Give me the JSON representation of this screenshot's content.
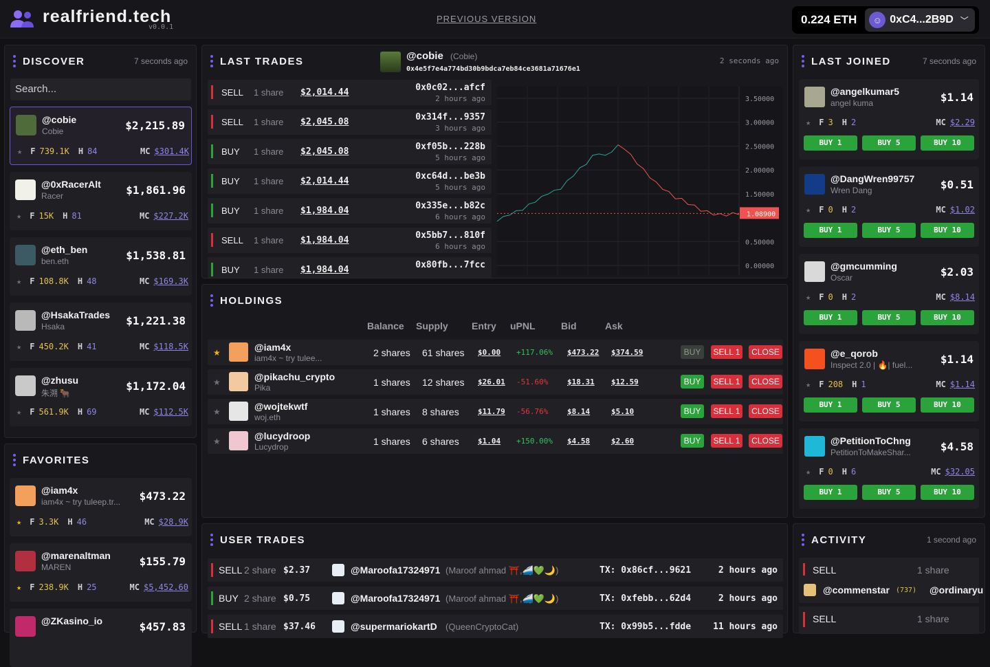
{
  "app": {
    "name": "realfriend.tech",
    "version": "v0.0.1",
    "prev_link": "PREVIOUS VERSION"
  },
  "wallet": {
    "balance": "0.224 ETH",
    "account": "0xC4...2B9D"
  },
  "discover": {
    "title": "DISCOVER",
    "ago": "7 seconds ago",
    "search_placeholder": "Search...",
    "items": [
      {
        "name": "@cobie",
        "sub": "Cobie",
        "price": "$2,215.89",
        "f": "739.1K",
        "h": "84",
        "mc": "$301.4K"
      },
      {
        "name": "@0xRacerAlt",
        "sub": "Racer",
        "price": "$1,861.96",
        "f": "15K",
        "h": "81",
        "mc": "$227.2K"
      },
      {
        "name": "@eth_ben",
        "sub": "ben.eth",
        "price": "$1,538.81",
        "f": "108.8K",
        "h": "48",
        "mc": "$169.3K"
      },
      {
        "name": "@HsakaTrades",
        "sub": "Hsaka",
        "price": "$1,221.38",
        "f": "450.2K",
        "h": "41",
        "mc": "$118.5K"
      },
      {
        "name": "@zhusu",
        "sub": "朱溯 🐂",
        "price": "$1,172.04",
        "f": "561.9K",
        "h": "69",
        "mc": "$112.5K"
      }
    ]
  },
  "favorites": {
    "title": "FAVORITES",
    "items": [
      {
        "name": "@iam4x",
        "sub": "iam4x ~ try tuleep.tr...",
        "price": "$473.22",
        "f": "3.3K",
        "h": "46",
        "mc": "$28.9K"
      },
      {
        "name": "@marenaltman",
        "sub": "MAREN",
        "price": "$155.79",
        "f": "238.9K",
        "h": "25",
        "mc": "$5,452.60"
      },
      {
        "name": "@ZKasino_io",
        "sub": "",
        "price": "$457.83",
        "f": "",
        "h": "",
        "mc": ""
      }
    ]
  },
  "labels": {
    "f": "F",
    "h": "H",
    "mc": "MC"
  },
  "last_trades": {
    "title": "LAST TRADES",
    "ago": "2 seconds ago",
    "subject": {
      "name": "@cobie",
      "sub": "(Cobie)",
      "address": "0x4e5f7e4a774bd30b9bdca7eb84ce3681a71676e1"
    },
    "rows": [
      {
        "type": "SELL",
        "shares": "1 share",
        "amount": "$2,014.44",
        "hash": "0x0c02...afcf",
        "time": "2 hours ago"
      },
      {
        "type": "SELL",
        "shares": "1 share",
        "amount": "$2,045.08",
        "hash": "0x314f...9357",
        "time": "3 hours ago"
      },
      {
        "type": "BUY",
        "shares": "1 share",
        "amount": "$2,045.08",
        "hash": "0xf05b...228b",
        "time": "5 hours ago"
      },
      {
        "type": "BUY",
        "shares": "1 share",
        "amount": "$2,014.44",
        "hash": "0xc64d...be3b",
        "time": "5 hours ago"
      },
      {
        "type": "BUY",
        "shares": "1 share",
        "amount": "$1,984.04",
        "hash": "0x335e...b82c",
        "time": "6 hours ago"
      },
      {
        "type": "SELL",
        "shares": "1 share",
        "amount": "$1,984.04",
        "hash": "0x5bb7...810f",
        "time": "6 hours ago"
      },
      {
        "type": "BUY",
        "shares": "1 share",
        "amount": "$1,984.04",
        "hash": "0x80fb...7fcc",
        "time": ""
      }
    ]
  },
  "chart_data": {
    "type": "line",
    "y_ticks": [
      "3.50000",
      "3.00000",
      "2.50000",
      "2.00000",
      "1.50000",
      "1.08900",
      "0.50000",
      "0.00000"
    ],
    "ylim": [
      0,
      3.6
    ],
    "current_value": 1.089,
    "current_label": "1.08900",
    "values": [
      0.95,
      1.0,
      1.08,
      1.12,
      1.18,
      1.26,
      1.35,
      1.42,
      1.52,
      1.55,
      1.62,
      1.75,
      1.9,
      2.02,
      2.14,
      2.28,
      2.36,
      2.28,
      2.4,
      2.5,
      2.46,
      2.3,
      2.15,
      2.0,
      1.86,
      1.72,
      1.62,
      1.52,
      1.42,
      1.38,
      1.3,
      1.24,
      1.16,
      1.12,
      1.08,
      1.06,
      1.06,
      1.08,
      1.09
    ],
    "colors": {
      "line_up": "#26a69a",
      "line_down": "#ef5350",
      "current": "#ef5350"
    }
  },
  "holdings": {
    "title": "HOLDINGS",
    "headers": [
      "Balance",
      "Supply",
      "Entry",
      "uPNL",
      "Bid",
      "Ask"
    ],
    "rows": [
      {
        "name": "@iam4x",
        "sub": "iam4x ~ try tulee...",
        "fav": true,
        "balance": "2 shares",
        "supply": "61 shares",
        "entry": "$0.00",
        "upnl": "+117.06%",
        "bid": "$473.22",
        "ask": "$374.59",
        "buy_enabled": false
      },
      {
        "name": "@pikachu_crypto",
        "sub": "Pika",
        "fav": false,
        "balance": "1 shares",
        "supply": "12 shares",
        "entry": "$26.01",
        "upnl": "-51.60%",
        "bid": "$18.31",
        "ask": "$12.59",
        "buy_enabled": true
      },
      {
        "name": "@wojtekwtf",
        "sub": "woj.eth",
        "fav": false,
        "balance": "1 shares",
        "supply": "8 shares",
        "entry": "$11.79",
        "upnl": "-56.76%",
        "bid": "$8.14",
        "ask": "$5.10",
        "buy_enabled": true
      },
      {
        "name": "@lucydroop",
        "sub": "Lucydrop",
        "fav": false,
        "balance": "1 shares",
        "supply": "6 shares",
        "entry": "$1.04",
        "upnl": "+150.00%",
        "bid": "$4.58",
        "ask": "$2.60",
        "buy_enabled": true
      }
    ],
    "buttons": {
      "buy": "BUY",
      "sell": "SELL 1",
      "close": "CLOSE"
    }
  },
  "user_trades": {
    "title": "USER TRADES",
    "rows": [
      {
        "type": "SELL",
        "shares": "2 share",
        "amount": "$2.37",
        "user": "@Maroofa17324971",
        "real": "(Maroof ahmad ⛩️,🚄💚🌙)",
        "tx": "TX: 0x86cf...9621",
        "time": "2 hours ago"
      },
      {
        "type": "BUY",
        "shares": "2 share",
        "amount": "$0.75",
        "user": "@Maroofa17324971",
        "real": "(Maroof ahmad ⛩️,🚄💚🌙)",
        "tx": "TX: 0xfebb...62d4",
        "time": "2 hours ago"
      },
      {
        "type": "SELL",
        "shares": "1 share",
        "amount": "$37.46",
        "user": "@supermariokartD",
        "real": "(QueenCryptoCat)",
        "tx": "TX: 0x99b5...fdde",
        "time": "11 hours ago"
      }
    ]
  },
  "last_joined": {
    "title": "LAST JOINED",
    "ago": "7 seconds ago",
    "items": [
      {
        "name": "@angelkumar5",
        "sub": "angel kuma",
        "price": "$1.14",
        "f": "3",
        "h": "2",
        "mc": "$2.29"
      },
      {
        "name": "@DangWren99757",
        "sub": "Wren Dang",
        "price": "$0.51",
        "f": "0",
        "h": "2",
        "mc": "$1.02"
      },
      {
        "name": "@gmcumming",
        "sub": "Oscar",
        "price": "$2.03",
        "f": "0",
        "h": "2",
        "mc": "$8.14"
      },
      {
        "name": "@e_qorob",
        "sub": "Inspect 2.0 | 🔥| fuel...",
        "price": "$1.14",
        "f": "208",
        "h": "1",
        "mc": "$1.14"
      },
      {
        "name": "@PetitionToChng",
        "sub": "PetitionToMakeShar...",
        "price": "$4.58",
        "f": "0",
        "h": "6",
        "mc": "$32.05"
      }
    ],
    "buttons": [
      "BUY 1",
      "BUY 5",
      "BUY 10"
    ]
  },
  "activity": {
    "title": "ACTIVITY",
    "ago": "1 second ago",
    "rows": [
      {
        "type": "SELL",
        "shares": "1 share",
        "trader": "@commenstar",
        "count": "(737)",
        "subject": "@ordinaryu"
      },
      {
        "type": "SELL",
        "shares": "1 share"
      }
    ]
  }
}
